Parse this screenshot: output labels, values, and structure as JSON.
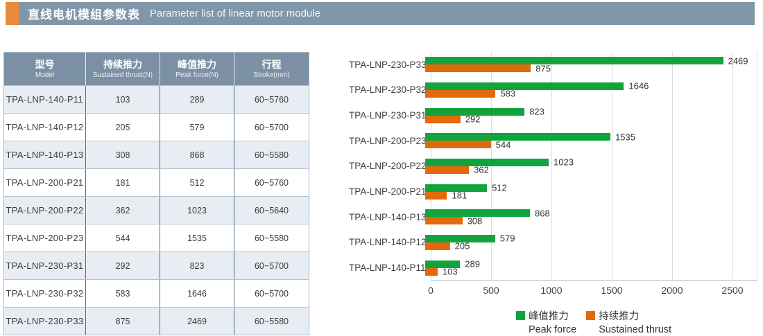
{
  "header": {
    "accent_color": "#E8893B",
    "bar_color": "#8196A8",
    "title_zh": "直线电机模组参数表",
    "title_en": "Parameter list of linear motor module"
  },
  "table": {
    "columns": [
      {
        "zh": "型号",
        "en": "Model"
      },
      {
        "zh": "持续推力",
        "en": "Sustained thrust(N)"
      },
      {
        "zh": "峰值推力",
        "en": "Peak force(N)"
      },
      {
        "zh": "行程",
        "en": "Stroke(mm)"
      }
    ],
    "rows": [
      {
        "model": "TPA-LNP-140-P11",
        "sustained": "103",
        "peak": "289",
        "stroke": "60~5760"
      },
      {
        "model": "TPA-LNP-140-P12",
        "sustained": "205",
        "peak": "579",
        "stroke": "60~5700"
      },
      {
        "model": "TPA-LNP-140-P13",
        "sustained": "308",
        "peak": "868",
        "stroke": "60~5580"
      },
      {
        "model": "TPA-LNP-200-P21",
        "sustained": "181",
        "peak": "512",
        "stroke": "60~5760"
      },
      {
        "model": "TPA-LNP-200-P22",
        "sustained": "362",
        "peak": "1023",
        "stroke": "60~5640"
      },
      {
        "model": "TPA-LNP-200-P23",
        "sustained": "544",
        "peak": "1535",
        "stroke": "60~5580"
      },
      {
        "model": "TPA-LNP-230-P31",
        "sustained": "292",
        "peak": "823",
        "stroke": "60~5700"
      },
      {
        "model": "TPA-LNP-230-P32",
        "sustained": "583",
        "peak": "1646",
        "stroke": "60~5700"
      },
      {
        "model": "TPA-LNP-230-P33",
        "sustained": "875",
        "peak": "2469",
        "stroke": "60~5580"
      }
    ]
  },
  "chart_data": {
    "type": "bar",
    "orientation": "horizontal",
    "categories": [
      "TPA-LNP-230-P33",
      "TPA-LNP-230-P32",
      "TPA-LNP-230-P31",
      "TPA-LNP-200-P23",
      "TPA-LNP-200-P22",
      "TPA-LNP-200-P21",
      "TPA-LNP-140-P13",
      "TPA-LNP-140-P12",
      "TPA-LNP-140-P11"
    ],
    "series": [
      {
        "name_zh": "峰值推力",
        "name_en": "Peak force",
        "color": "#12A43C",
        "values": [
          2469,
          1646,
          823,
          1535,
          1023,
          512,
          868,
          579,
          289
        ]
      },
      {
        "name_zh": "持续推力",
        "name_en": "Sustained thrust",
        "color": "#E16B0C",
        "values": [
          875,
          583,
          292,
          544,
          362,
          181,
          308,
          205,
          103
        ]
      }
    ],
    "xlim": [
      0,
      2500
    ],
    "xticks": [
      0,
      500,
      1000,
      1500,
      2000,
      2500
    ],
    "grid": true,
    "legend_position": "bottom",
    "gridline_color": "#DCDCDC"
  }
}
